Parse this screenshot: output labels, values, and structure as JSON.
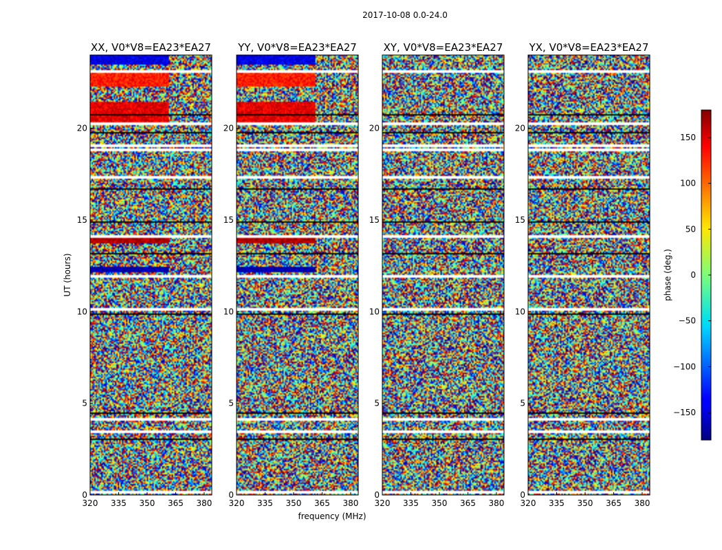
{
  "chart_data": {
    "type": "heatmap",
    "suptitle": "2017-10-08 0.0-24.0",
    "xlabel": "frequency (MHz)",
    "ylabel": "UT (hours)",
    "xlim": [
      320,
      384
    ],
    "ylim": [
      0,
      24
    ],
    "xticks": [
      320,
      335,
      350,
      365,
      380
    ],
    "xtick_labels": [
      "320",
      "335",
      "350",
      "365",
      "380"
    ],
    "yticks": [
      0,
      5,
      10,
      15,
      20
    ],
    "ytick_labels": [
      "0",
      "5",
      "10",
      "15",
      "20"
    ],
    "colormap": "jet",
    "colorbar": {
      "label": "phase (deg.)",
      "range": [
        -180,
        180
      ],
      "ticks": [
        -150,
        -100,
        -50,
        0,
        50,
        100,
        150
      ],
      "tick_labels": [
        "−150",
        "−100",
        "−50",
        "0",
        "50",
        "100",
        "150"
      ]
    },
    "panels": [
      {
        "title": "XX, V0*V8=EA23*EA27",
        "coherent_bands": [
          [
            12.2,
            12.5,
            0
          ],
          [
            13.8,
            14.1,
            1
          ],
          [
            20.4,
            21.5,
            2
          ],
          [
            22.3,
            23.2,
            3
          ],
          [
            23.5,
            24.0,
            4
          ]
        ]
      },
      {
        "title": "YY, V0*V8=EA23*EA27",
        "coherent_bands": [
          [
            12.2,
            12.5,
            0
          ],
          [
            13.8,
            14.1,
            1
          ],
          [
            20.4,
            21.5,
            2
          ],
          [
            22.3,
            23.2,
            3
          ],
          [
            23.5,
            24.0,
            4
          ]
        ]
      },
      {
        "title": "XY, V0*V8=EA23*EA27",
        "coherent_bands": []
      },
      {
        "title": "YX, V0*V8=EA23*EA27",
        "coherent_bands": []
      }
    ],
    "gap_bands_hours": [
      0.2,
      3.5,
      4.2,
      10.2,
      12.0,
      14.2,
      17.4,
      18.9,
      19.1,
      20.3,
      23.2
    ],
    "dark_bands_hours": [
      3.1,
      4.5,
      9.9,
      13.2,
      14.9,
      16.7,
      19.8,
      20.8
    ]
  }
}
